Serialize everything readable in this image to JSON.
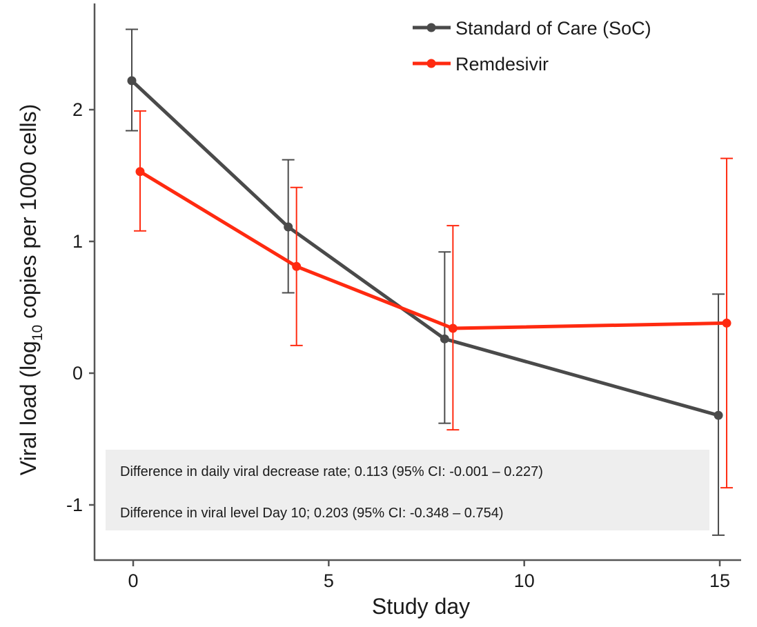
{
  "chart_data": {
    "type": "line",
    "title": "",
    "xlabel": "Study day",
    "ylabel": "Viral load (log",
    "ylabel_sub": "10",
    "ylabel_tail": " copies per 1000 cells)",
    "xlim": [
      -0.5,
      15.5
    ],
    "ylim": [
      -1.4,
      2.8
    ],
    "x_ticks": [
      0,
      5,
      10,
      15
    ],
    "x_tick_labels": [
      "0",
      "5",
      "10",
      "15"
    ],
    "y_ticks": [
      -1,
      0,
      1,
      2
    ],
    "y_tick_labels": [
      "-1",
      "0",
      "1",
      "2"
    ],
    "grid": false,
    "legend_position": "top-right",
    "series": [
      {
        "name": "Standard of Care (SoC)",
        "color": "#4a4a4a",
        "x": [
          0,
          4,
          8,
          15
        ],
        "y": [
          2.22,
          1.11,
          0.26,
          -0.32
        ],
        "lower": [
          1.84,
          0.61,
          -0.38,
          -1.23
        ],
        "upper": [
          2.61,
          1.62,
          0.92,
          0.6
        ]
      },
      {
        "name": "Remdesivir",
        "color": "#ff2a10",
        "x": [
          0,
          4,
          8,
          15
        ],
        "y": [
          1.53,
          0.81,
          0.34,
          0.38
        ],
        "lower": [
          1.08,
          0.21,
          -0.43,
          -0.87
        ],
        "upper": [
          1.99,
          1.41,
          1.12,
          1.63
        ]
      }
    ],
    "annotations": [
      "Difference in daily viral decrease rate; 0.113 (95% CI: -0.001 – 0.227)",
      "Difference in viral level Day 10; 0.203 (95% CI: -0.348 – 0.754)"
    ]
  }
}
